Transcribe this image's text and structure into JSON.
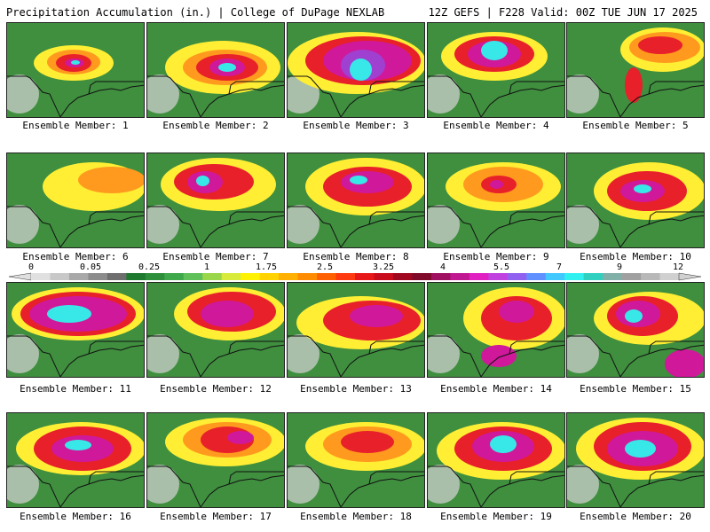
{
  "header": {
    "title": "Precipitation Accumulation (in.) | College of DuPage NEXLAB",
    "run_info": "12Z GEFS | F228 Valid: 00Z TUE JUN 17 2025"
  },
  "colors": {
    "land_green": "#3f8f3f",
    "gray_light": "#cfcfcf",
    "yellow": "#ffee33",
    "orange": "#ff9a1e",
    "red": "#e8202a",
    "magenta": "#d0189a",
    "purple": "#a040d0",
    "cyan": "#38e8e8",
    "border_line": "#111111"
  },
  "colorbar": {
    "ticks": [
      "0",
      "0.05",
      "0.25",
      "1",
      "1.75",
      "2.5",
      "3.25",
      "4",
      "5.5",
      "7",
      "9",
      "12"
    ],
    "colors": [
      "#e0e0e0",
      "#c8c8c8",
      "#a8a8a8",
      "#8c8c8c",
      "#6e6e6e",
      "#1e7a2e",
      "#2e8f3a",
      "#3fa84a",
      "#5fc05a",
      "#9ad64a",
      "#d8ea3a",
      "#fff200",
      "#ffd200",
      "#ffb000",
      "#ff8c00",
      "#ff6000",
      "#ff3a10",
      "#e81818",
      "#c80c1c",
      "#a00820",
      "#800a2a",
      "#a01060",
      "#c01890",
      "#e020c0",
      "#c040e0",
      "#9060f0",
      "#6090ff",
      "#40c8ff",
      "#30f0f0",
      "#30d0c0",
      "#80b0a8",
      "#a0a0a0",
      "#b8b8b8",
      "#d0d0d0"
    ]
  },
  "members": [
    {
      "label": "Ensemble Member: 1"
    },
    {
      "label": "Ensemble Member: 2"
    },
    {
      "label": "Ensemble Member: 3"
    },
    {
      "label": "Ensemble Member: 4"
    },
    {
      "label": "Ensemble Member: 5"
    },
    {
      "label": "Ensemble Member: 6"
    },
    {
      "label": "Ensemble Member: 7"
    },
    {
      "label": "Ensemble Member: 8"
    },
    {
      "label": "Ensemble Member: 9"
    },
    {
      "label": "Ensemble Member: 10"
    },
    {
      "label": "Ensemble Member: 11"
    },
    {
      "label": "Ensemble Member: 12"
    },
    {
      "label": "Ensemble Member: 13"
    },
    {
      "label": "Ensemble Member: 14"
    },
    {
      "label": "Ensemble Member: 15"
    },
    {
      "label": "Ensemble Member: 16"
    },
    {
      "label": "Ensemble Member: 17"
    },
    {
      "label": "Ensemble Member: 18"
    },
    {
      "label": "Ensemble Member: 19"
    },
    {
      "label": "Ensemble Member: 20"
    }
  ]
}
